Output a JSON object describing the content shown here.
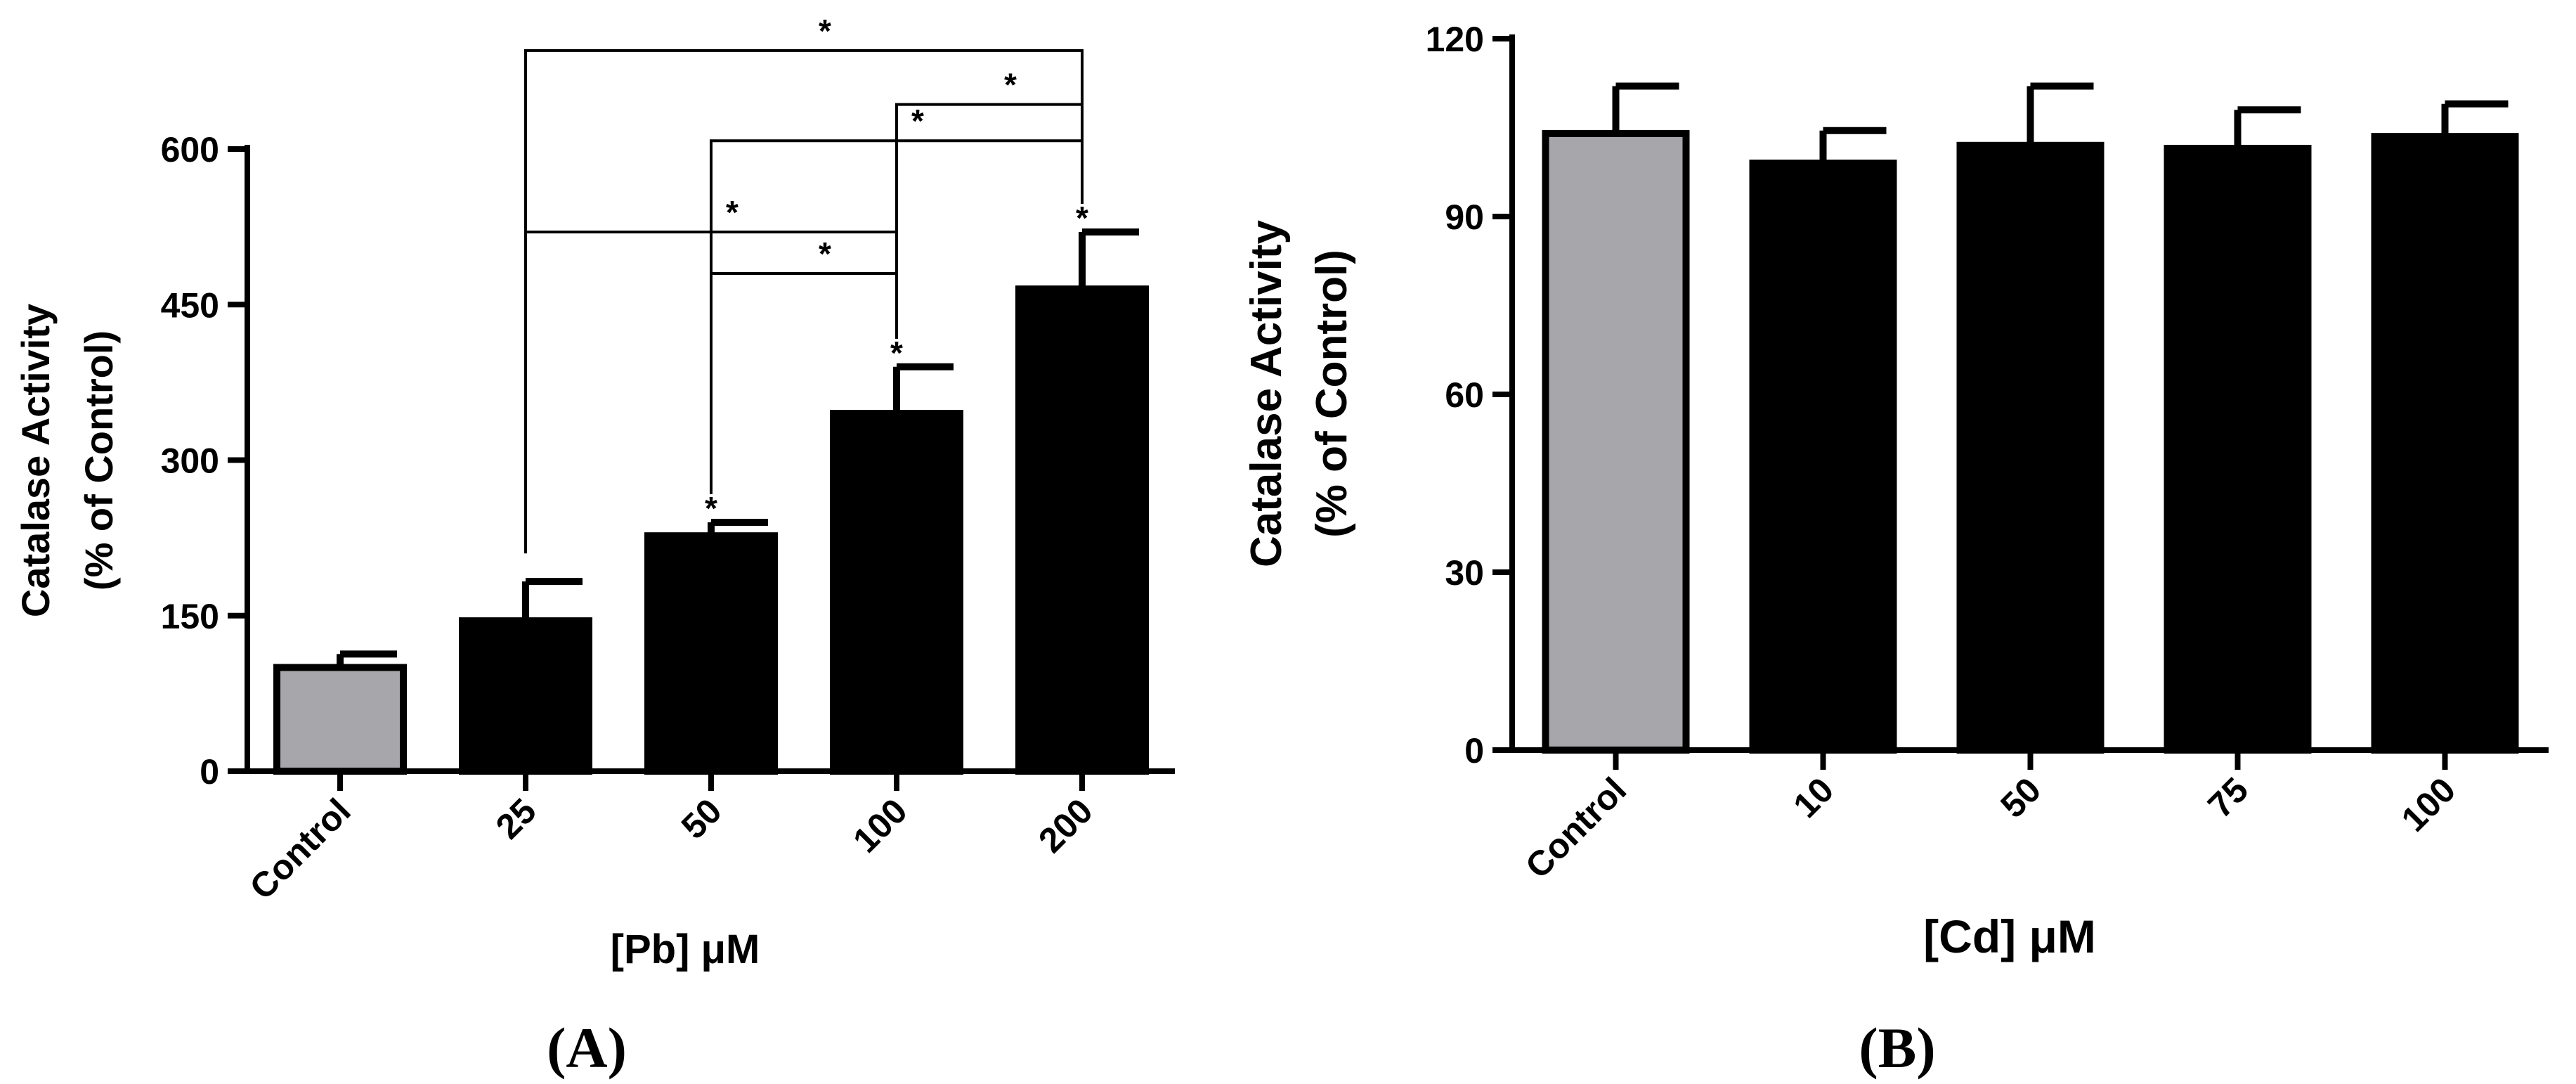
{
  "chart_data": [
    {
      "type": "bar",
      "panel": "A",
      "panel_label": "(A)",
      "title": "",
      "xlabel": "[Pb] μM",
      "ylabel_line1": "Catalase Activity",
      "ylabel_line2": "(% of Control)",
      "ylim": [
        0,
        600
      ],
      "yticks": [
        0,
        150,
        300,
        450,
        600
      ],
      "categories": [
        "Control",
        "25",
        "50",
        "100",
        "200"
      ],
      "values": [
        100,
        145,
        227,
        345,
        465
      ],
      "errors": [
        13,
        38,
        13,
        45,
        55
      ],
      "bar_colors": [
        "#a7a6ab",
        "#000000",
        "#000000",
        "#000000",
        "#000000"
      ],
      "bar_stars": [
        "",
        "",
        "*",
        "*",
        "*"
      ],
      "brackets": [
        {
          "from": 1,
          "to": 3,
          "level": 520,
          "label": "*"
        },
        {
          "from": 2,
          "to": 3,
          "level": 480,
          "label": "*"
        },
        {
          "from": 2,
          "to": 4,
          "level": 608,
          "label": "*"
        },
        {
          "from": 3,
          "to": 4,
          "level": 643,
          "label": "*"
        },
        {
          "from": 1,
          "to": 4,
          "level": 695,
          "label": "*"
        }
      ]
    },
    {
      "type": "bar",
      "panel": "B",
      "panel_label": "(B)",
      "title": "",
      "xlabel": "[Cd] μM",
      "ylabel_line1": "Catalase Activity",
      "ylabel_line2": "(% of Control)",
      "ylim": [
        0,
        120
      ],
      "yticks": [
        0,
        30,
        60,
        90,
        120
      ],
      "categories": [
        "Control",
        "10",
        "50",
        "75",
        "100"
      ],
      "values": [
        104,
        99,
        102,
        101.5,
        103.5
      ],
      "errors": [
        8,
        5.5,
        10,
        6.5,
        5.5
      ],
      "bar_colors": [
        "#a7a6ab",
        "#000000",
        "#000000",
        "#000000",
        "#000000"
      ],
      "bar_stars": [
        "",
        "",
        "",
        "",
        ""
      ],
      "brackets": []
    }
  ]
}
